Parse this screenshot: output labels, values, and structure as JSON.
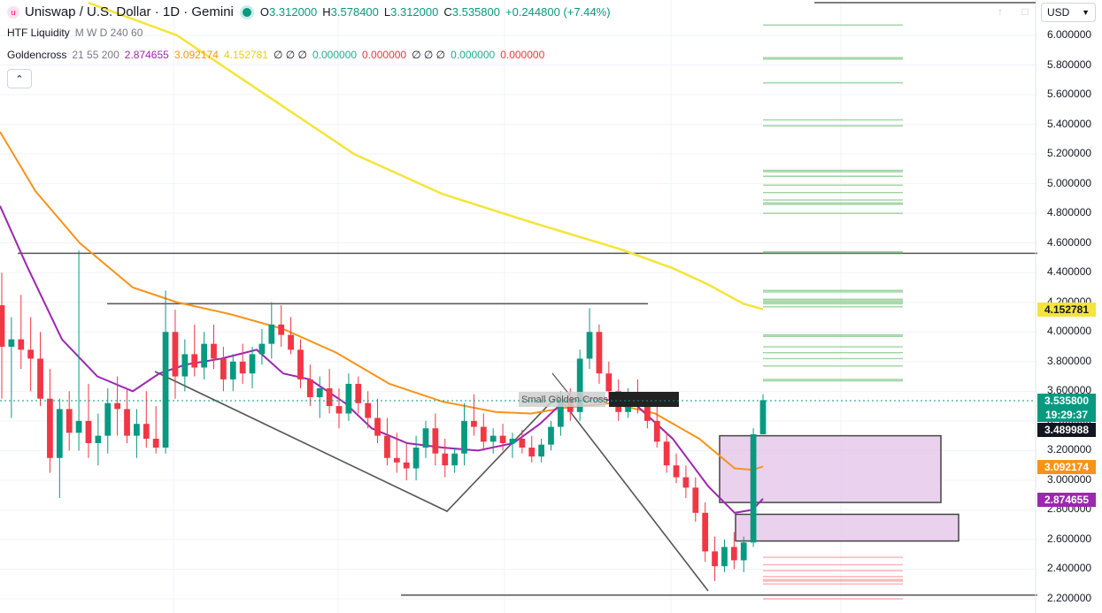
{
  "header": {
    "symbol_title": "Uniswap / U.S. Dollar · 1D · Gemini",
    "open_label": "O",
    "open_value": "3.312000",
    "high_label": "H",
    "high_value": "3.578400",
    "low_label": "L",
    "low_value": "3.312000",
    "close_label": "C",
    "close_value": "3.535800",
    "change": "+0.244800 (+7.44%)"
  },
  "indicators": {
    "htf_name": "HTF Liquidity",
    "htf_params": "M W D 240 60",
    "gc_name": "Goldencross",
    "gc_params": "21 55 200",
    "gc_v1": "2.874655",
    "gc_v2": "3.092174",
    "gc_v3": "4.152781",
    "gc_rest_a": "∅ ∅ ∅",
    "gc_v4": "0.000000",
    "gc_v5": "0.000000",
    "gc_rest_b": "∅ ∅ ∅",
    "gc_v6": "0.000000",
    "gc_v7": "0.000000"
  },
  "controls": {
    "collapse_icon": "chevron-up-icon",
    "currency": "USD"
  },
  "annotation": {
    "label": "Small Golden Cross"
  },
  "price_tags": {
    "ma200": "4.152781",
    "last_price": "3.535800",
    "countdown": "19:29:37",
    "level": "3.489988",
    "ma55": "3.092174",
    "ma21": "2.874655"
  },
  "colors": {
    "up": "#089981",
    "down": "#f23645",
    "ma21": "#9c27b0",
    "ma55": "#f7931a",
    "ma200": "#f5e43a",
    "zone": "#e1bee7",
    "liquidity_up": "#4caf50",
    "liquidity_down": "#f23645"
  },
  "chart_data": {
    "type": "candlestick",
    "symbol": "Uniswap / U.S. Dollar",
    "timeframe": "1D",
    "exchange": "Gemini",
    "y_axis_ticks": [
      "6.000000",
      "5.800000",
      "5.600000",
      "5.400000",
      "5.200000",
      "5.000000",
      "4.800000",
      "4.600000",
      "4.400000",
      "4.200000",
      "4.000000",
      "3.800000",
      "3.600000",
      "3.400000",
      "3.200000",
      "3.000000",
      "2.800000",
      "2.600000",
      "2.400000",
      "2.200000"
    ],
    "ylim": [
      2.17,
      6.23
    ],
    "candles": [
      [
        4.18,
        4.4,
        3.55,
        3.9
      ],
      [
        3.9,
        4.1,
        3.42,
        3.95
      ],
      [
        3.95,
        4.25,
        3.75,
        3.88
      ],
      [
        3.88,
        4.1,
        3.6,
        3.82
      ],
      [
        3.82,
        4.0,
        3.5,
        3.55
      ],
      [
        3.55,
        3.75,
        3.05,
        3.15
      ],
      [
        3.15,
        3.55,
        2.88,
        3.48
      ],
      [
        3.48,
        3.6,
        3.2,
        3.32
      ],
      [
        3.32,
        4.55,
        3.2,
        3.4
      ],
      [
        3.4,
        3.65,
        3.15,
        3.25
      ],
      [
        3.25,
        3.45,
        3.1,
        3.3
      ],
      [
        3.3,
        3.62,
        3.18,
        3.52
      ],
      [
        3.52,
        3.7,
        3.3,
        3.48
      ],
      [
        3.48,
        3.62,
        3.25,
        3.3
      ],
      [
        3.3,
        3.48,
        3.15,
        3.38
      ],
      [
        3.38,
        3.6,
        3.22,
        3.28
      ],
      [
        3.28,
        3.5,
        3.18,
        3.22
      ],
      [
        3.22,
        4.28,
        3.18,
        4.0
      ],
      [
        4.0,
        4.15,
        3.55,
        3.7
      ],
      [
        3.7,
        3.95,
        3.6,
        3.85
      ],
      [
        3.85,
        4.05,
        3.7,
        3.76
      ],
      [
        3.76,
        4.0,
        3.68,
        3.92
      ],
      [
        3.92,
        4.05,
        3.75,
        3.82
      ],
      [
        3.82,
        3.9,
        3.6,
        3.68
      ],
      [
        3.68,
        3.85,
        3.6,
        3.8
      ],
      [
        3.8,
        3.92,
        3.65,
        3.72
      ],
      [
        3.72,
        3.9,
        3.62,
        3.85
      ],
      [
        3.85,
        4.02,
        3.78,
        3.92
      ],
      [
        3.92,
        4.2,
        3.82,
        4.05
      ],
      [
        4.05,
        4.18,
        3.9,
        3.98
      ],
      [
        3.98,
        4.1,
        3.85,
        3.88
      ],
      [
        3.88,
        3.95,
        3.62,
        3.68
      ],
      [
        3.68,
        3.78,
        3.5,
        3.56
      ],
      [
        3.56,
        3.7,
        3.42,
        3.62
      ],
      [
        3.62,
        3.75,
        3.45,
        3.5
      ],
      [
        3.5,
        3.62,
        3.35,
        3.45
      ],
      [
        3.45,
        3.72,
        3.4,
        3.65
      ],
      [
        3.65,
        3.7,
        3.45,
        3.52
      ],
      [
        3.52,
        3.6,
        3.35,
        3.42
      ],
      [
        3.42,
        3.55,
        3.25,
        3.3
      ],
      [
        3.3,
        3.42,
        3.1,
        3.15
      ],
      [
        3.15,
        3.32,
        3.05,
        3.12
      ],
      [
        3.12,
        3.25,
        3.0,
        3.08
      ],
      [
        3.08,
        3.3,
        3.0,
        3.22
      ],
      [
        3.22,
        3.4,
        3.15,
        3.35
      ],
      [
        3.35,
        3.45,
        3.1,
        3.18
      ],
      [
        3.18,
        3.28,
        3.02,
        3.1
      ],
      [
        3.1,
        3.22,
        3.05,
        3.18
      ],
      [
        3.18,
        3.52,
        3.1,
        3.4
      ],
      [
        3.4,
        3.58,
        3.3,
        3.36
      ],
      [
        3.36,
        3.45,
        3.2,
        3.26
      ],
      [
        3.26,
        3.35,
        3.18,
        3.3
      ],
      [
        3.3,
        3.38,
        3.2,
        3.25
      ],
      [
        3.25,
        3.32,
        3.15,
        3.28
      ],
      [
        3.28,
        3.34,
        3.18,
        3.22
      ],
      [
        3.22,
        3.3,
        3.12,
        3.16
      ],
      [
        3.16,
        3.28,
        3.12,
        3.24
      ],
      [
        3.24,
        3.4,
        3.2,
        3.36
      ],
      [
        3.36,
        3.6,
        3.3,
        3.55
      ],
      [
        3.55,
        3.62,
        3.4,
        3.46
      ],
      [
        3.46,
        3.88,
        3.4,
        3.82
      ],
      [
        3.82,
        4.16,
        3.75,
        4.0
      ],
      [
        4.0,
        4.05,
        3.65,
        3.72
      ],
      [
        3.72,
        3.8,
        3.55,
        3.6
      ],
      [
        3.6,
        3.68,
        3.4,
        3.46
      ],
      [
        3.46,
        3.62,
        3.42,
        3.55
      ],
      [
        3.55,
        3.68,
        3.45,
        3.5
      ],
      [
        3.5,
        3.58,
        3.35,
        3.4
      ],
      [
        3.4,
        3.5,
        3.22,
        3.26
      ],
      [
        3.26,
        3.32,
        3.05,
        3.1
      ],
      [
        3.1,
        3.18,
        2.98,
        3.02
      ],
      [
        3.02,
        3.1,
        2.88,
        2.95
      ],
      [
        2.95,
        3.02,
        2.72,
        2.78
      ],
      [
        2.78,
        2.85,
        2.45,
        2.52
      ],
      [
        2.52,
        2.62,
        2.32,
        2.42
      ],
      [
        2.42,
        2.6,
        2.38,
        2.55
      ],
      [
        2.55,
        2.65,
        2.4,
        2.46
      ],
      [
        2.46,
        2.62,
        2.38,
        2.58
      ],
      [
        2.58,
        3.35,
        2.55,
        3.31
      ],
      [
        3.31,
        3.58,
        3.31,
        3.54
      ]
    ],
    "series": [
      {
        "name": "MA 21",
        "last": 2.874655
      },
      {
        "name": "MA 55",
        "last": 3.092174
      },
      {
        "name": "MA 200",
        "last": 4.152781
      }
    ],
    "horizontal_levels": [
      4.53,
      4.19,
      2.225
    ],
    "zones": [
      [
        2.85,
        3.3
      ],
      [
        2.59,
        2.77
      ]
    ],
    "last_price": 3.5358
  }
}
